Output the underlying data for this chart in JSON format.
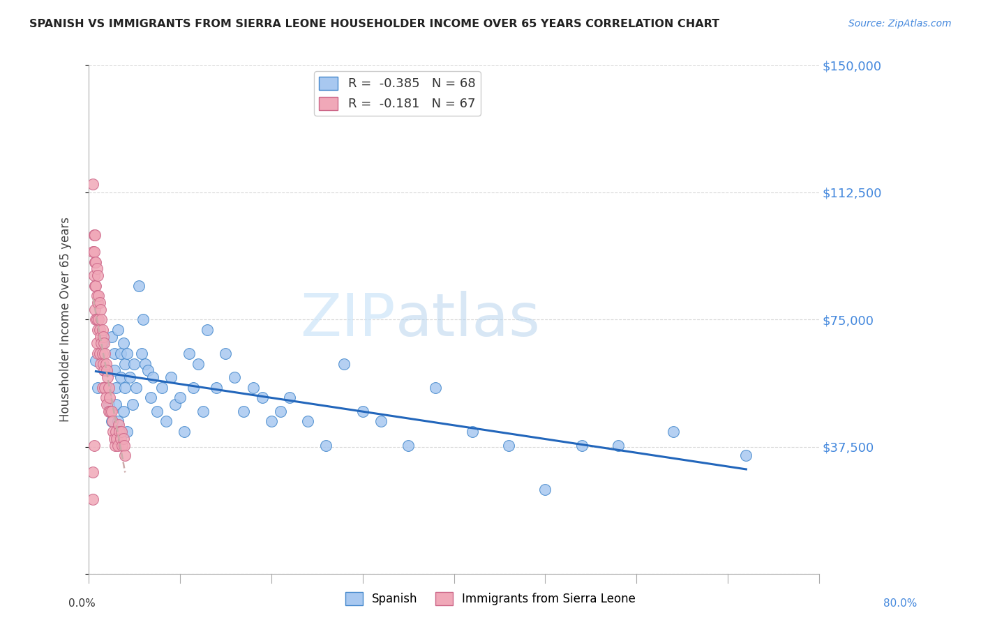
{
  "title": "SPANISH VS IMMIGRANTS FROM SIERRA LEONE HOUSEHOLDER INCOME OVER 65 YEARS CORRELATION CHART",
  "source": "Source: ZipAtlas.com",
  "ylabel": "Householder Income Over 65 years",
  "yticks": [
    0,
    37500,
    75000,
    112500,
    150000
  ],
  "ytick_labels": [
    "",
    "$37,500",
    "$75,000",
    "$112,500",
    "$150,000"
  ],
  "xlim": [
    0.0,
    0.8
  ],
  "ylim": [
    0,
    150000
  ],
  "spanish_color": "#a8c8f0",
  "spanish_edge_color": "#4488cc",
  "sierra_leone_color": "#f0a8b8",
  "sierra_leone_edge_color": "#cc6688",
  "trend_spanish_color": "#2266bb",
  "trend_sierra_leone_color": "#ccaaaa",
  "watermark_color": "#cce4f8",
  "title_color": "#222222",
  "source_color": "#4488dd",
  "ytick_color": "#4488dd",
  "grid_color": "#cccccc",
  "spanish_x": [
    0.008,
    0.01,
    0.015,
    0.018,
    0.02,
    0.022,
    0.025,
    0.025,
    0.028,
    0.028,
    0.03,
    0.03,
    0.032,
    0.032,
    0.035,
    0.035,
    0.038,
    0.038,
    0.04,
    0.04,
    0.042,
    0.042,
    0.045,
    0.048,
    0.05,
    0.052,
    0.055,
    0.058,
    0.06,
    0.062,
    0.065,
    0.068,
    0.07,
    0.075,
    0.08,
    0.085,
    0.09,
    0.095,
    0.1,
    0.105,
    0.11,
    0.115,
    0.12,
    0.125,
    0.13,
    0.14,
    0.15,
    0.16,
    0.17,
    0.18,
    0.19,
    0.2,
    0.21,
    0.22,
    0.24,
    0.26,
    0.28,
    0.3,
    0.32,
    0.35,
    0.38,
    0.42,
    0.46,
    0.5,
    0.54,
    0.58,
    0.64,
    0.72
  ],
  "spanish_y": [
    63000,
    55000,
    68000,
    60000,
    55000,
    50000,
    45000,
    70000,
    65000,
    60000,
    55000,
    50000,
    45000,
    72000,
    65000,
    58000,
    48000,
    68000,
    62000,
    55000,
    42000,
    65000,
    58000,
    50000,
    62000,
    55000,
    85000,
    65000,
    75000,
    62000,
    60000,
    52000,
    58000,
    48000,
    55000,
    45000,
    58000,
    50000,
    52000,
    42000,
    65000,
    55000,
    62000,
    48000,
    72000,
    55000,
    65000,
    58000,
    48000,
    55000,
    52000,
    45000,
    48000,
    52000,
    45000,
    38000,
    62000,
    48000,
    45000,
    38000,
    55000,
    42000,
    38000,
    25000,
    38000,
    38000,
    42000,
    35000
  ],
  "sierra_leone_x": [
    0.005,
    0.005,
    0.006,
    0.006,
    0.006,
    0.007,
    0.007,
    0.007,
    0.007,
    0.008,
    0.008,
    0.008,
    0.009,
    0.009,
    0.009,
    0.009,
    0.01,
    0.01,
    0.01,
    0.01,
    0.011,
    0.011,
    0.012,
    0.012,
    0.012,
    0.013,
    0.013,
    0.013,
    0.014,
    0.014,
    0.015,
    0.015,
    0.015,
    0.016,
    0.016,
    0.017,
    0.017,
    0.018,
    0.018,
    0.019,
    0.019,
    0.02,
    0.02,
    0.021,
    0.022,
    0.022,
    0.023,
    0.024,
    0.025,
    0.026,
    0.027,
    0.028,
    0.029,
    0.03,
    0.031,
    0.032,
    0.033,
    0.034,
    0.035,
    0.036,
    0.037,
    0.038,
    0.039,
    0.04,
    0.005,
    0.006,
    0.005
  ],
  "sierra_leone_y": [
    115000,
    95000,
    100000,
    95000,
    88000,
    100000,
    92000,
    85000,
    78000,
    92000,
    85000,
    75000,
    90000,
    82000,
    75000,
    68000,
    88000,
    80000,
    72000,
    65000,
    82000,
    75000,
    80000,
    72000,
    65000,
    78000,
    70000,
    62000,
    75000,
    68000,
    72000,
    65000,
    55000,
    70000,
    62000,
    68000,
    60000,
    65000,
    55000,
    62000,
    52000,
    60000,
    50000,
    58000,
    55000,
    48000,
    52000,
    48000,
    48000,
    45000,
    42000,
    40000,
    38000,
    42000,
    40000,
    38000,
    44000,
    42000,
    40000,
    42000,
    38000,
    40000,
    38000,
    35000,
    22000,
    38000,
    30000
  ]
}
